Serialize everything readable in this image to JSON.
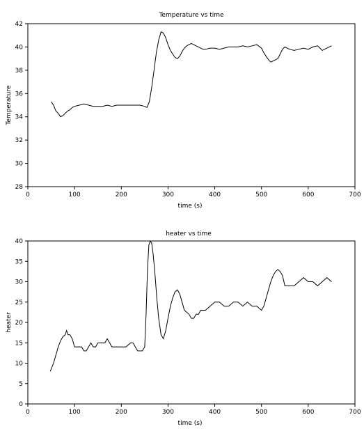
{
  "chart_data": [
    {
      "type": "line",
      "title": "Temperature vs time",
      "xlabel": "time (s)",
      "ylabel": "Temperature",
      "xlim": [
        0,
        700
      ],
      "ylim": [
        28,
        42
      ],
      "xticks": [
        "0",
        "100",
        "200",
        "300",
        "400",
        "500",
        "600",
        "700"
      ],
      "yticks": [
        "28",
        "30",
        "32",
        "34",
        "36",
        "38",
        "40",
        "42"
      ],
      "grid": false,
      "series": [
        {
          "color": "#000000",
          "x": [
            50,
            55,
            60,
            65,
            70,
            75,
            80,
            85,
            90,
            95,
            100,
            110,
            120,
            130,
            140,
            150,
            160,
            170,
            180,
            190,
            200,
            210,
            220,
            230,
            240,
            250,
            255,
            260,
            265,
            270,
            275,
            280,
            285,
            290,
            295,
            300,
            305,
            310,
            315,
            320,
            325,
            330,
            335,
            340,
            345,
            350,
            355,
            360,
            365,
            370,
            375,
            380,
            390,
            400,
            410,
            420,
            430,
            440,
            450,
            460,
            470,
            480,
            490,
            500,
            505,
            510,
            515,
            520,
            525,
            530,
            535,
            540,
            545,
            550,
            560,
            570,
            580,
            590,
            600,
            610,
            620,
            630,
            640,
            650
          ],
          "y": [
            35.3,
            35.0,
            34.5,
            34.3,
            34.0,
            34.1,
            34.3,
            34.5,
            34.6,
            34.8,
            34.9,
            35.0,
            35.1,
            35.0,
            34.9,
            34.9,
            34.9,
            35.0,
            34.9,
            35.0,
            35.0,
            35.0,
            35.0,
            35.0,
            35.0,
            34.9,
            34.8,
            35.3,
            36.5,
            38.0,
            39.5,
            40.6,
            41.3,
            41.2,
            40.8,
            40.2,
            39.7,
            39.4,
            39.1,
            39.0,
            39.2,
            39.6,
            39.9,
            40.1,
            40.2,
            40.3,
            40.2,
            40.1,
            40.0,
            39.9,
            39.8,
            39.8,
            39.9,
            39.9,
            39.8,
            39.9,
            40.0,
            40.0,
            40.0,
            40.1,
            40.0,
            40.1,
            40.2,
            39.9,
            39.5,
            39.2,
            38.9,
            38.7,
            38.8,
            38.9,
            39.0,
            39.4,
            39.8,
            40.0,
            39.8,
            39.7,
            39.8,
            39.9,
            39.8,
            40.0,
            40.1,
            39.7,
            39.9,
            40.1
          ]
        }
      ]
    },
    {
      "type": "line",
      "title": "heater vs time",
      "xlabel": "time (s)",
      "ylabel": "heater",
      "xlim": [
        0,
        700
      ],
      "ylim": [
        0,
        40
      ],
      "xticks": [
        "0",
        "100",
        "200",
        "300",
        "400",
        "500",
        "600",
        "700"
      ],
      "yticks": [
        "0",
        "5",
        "10",
        "15",
        "20",
        "25",
        "30",
        "35",
        "40"
      ],
      "grid": false,
      "series": [
        {
          "color": "#000000",
          "x": [
            48,
            55,
            60,
            65,
            70,
            75,
            80,
            83,
            86,
            90,
            95,
            100,
            105,
            110,
            115,
            120,
            125,
            130,
            135,
            140,
            145,
            150,
            155,
            160,
            165,
            170,
            175,
            180,
            190,
            200,
            210,
            220,
            225,
            230,
            235,
            240,
            245,
            250,
            253,
            256,
            259,
            262,
            265,
            268,
            272,
            276,
            280,
            285,
            290,
            295,
            300,
            305,
            310,
            315,
            320,
            325,
            330,
            335,
            340,
            345,
            350,
            355,
            360,
            365,
            370,
            380,
            390,
            400,
            410,
            420,
            430,
            440,
            450,
            460,
            470,
            480,
            490,
            500,
            505,
            510,
            515,
            520,
            525,
            530,
            535,
            540,
            545,
            550,
            560,
            570,
            580,
            590,
            600,
            610,
            620,
            630,
            640,
            650
          ],
          "y": [
            8,
            10,
            12,
            14,
            15.5,
            16.5,
            17,
            18,
            17,
            17,
            16,
            14,
            14,
            14,
            14,
            13,
            13,
            14,
            15,
            14,
            14,
            15,
            15,
            15,
            15,
            16,
            15,
            14,
            14,
            14,
            14,
            15,
            15,
            14,
            13,
            13,
            13,
            14,
            22,
            33,
            39,
            40,
            39.5,
            37,
            32,
            26,
            21,
            17,
            16,
            18,
            21,
            24,
            26,
            27.5,
            28,
            27,
            25,
            23,
            22.5,
            22,
            21,
            21,
            22,
            22,
            23,
            23,
            24,
            25,
            25,
            24,
            24,
            25,
            25,
            24,
            25,
            24,
            24,
            23,
            24,
            26,
            28,
            30,
            31.5,
            32.5,
            33,
            32.5,
            31.5,
            29,
            29,
            29,
            30,
            31,
            30,
            30,
            29,
            30,
            31,
            30
          ]
        }
      ]
    }
  ]
}
